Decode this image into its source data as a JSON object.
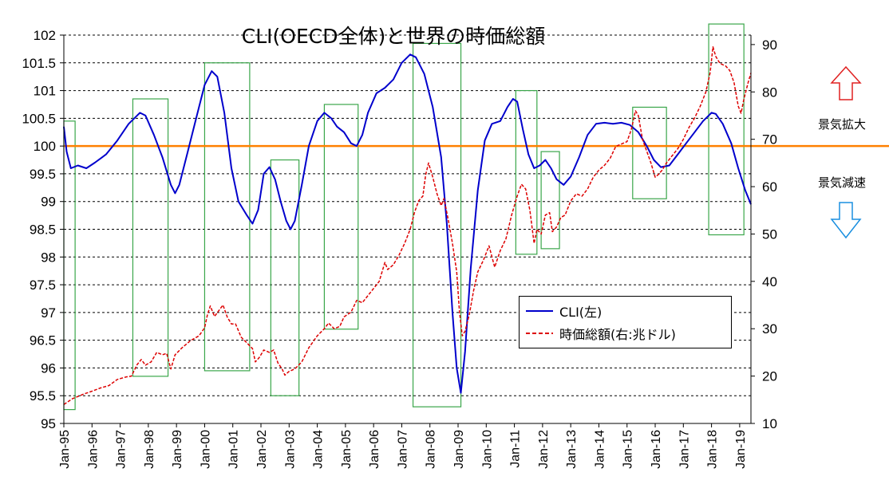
{
  "chart_data": {
    "type": "line",
    "title": "CLI(OECD全体)と世界の時価総額",
    "y_left": {
      "ylim": [
        95,
        102
      ],
      "ticks": [
        "95",
        "95.5",
        "96",
        "96.5",
        "97",
        "97.5",
        "98",
        "98.5",
        "99",
        "99.5",
        "100",
        "100.5",
        "101",
        "101.5",
        "102"
      ]
    },
    "y_right": {
      "ylim": [
        10,
        92
      ],
      "ticks": [
        "10",
        "20",
        "30",
        "40",
        "50",
        "60",
        "70",
        "80",
        "90"
      ]
    },
    "x_ticks": [
      "Jan-95",
      "Jan-96",
      "Jan-97",
      "Jan-98",
      "Jan-99",
      "Jan-00",
      "Jan-01",
      "Jan-02",
      "Jan-03",
      "Jan-04",
      "Jan-05",
      "Jan-06",
      "Jan-07",
      "Jan-08",
      "Jan-09",
      "Jan-10",
      "Jan-11",
      "Jan-12",
      "Jan-13",
      "Jan-14",
      "Jan-15",
      "Jan-16",
      "Jan-17",
      "Jan-18",
      "Jan-19"
    ],
    "xlim": [
      1995.0,
      2019.4
    ],
    "grid": "horizontal dashed",
    "series": [
      {
        "name": "CLI(左)",
        "axis": "left",
        "color": "#0000cc",
        "style": "solid",
        "points": [
          [
            1995.0,
            100.35
          ],
          [
            1995.1,
            99.9
          ],
          [
            1995.25,
            99.6
          ],
          [
            1995.5,
            99.65
          ],
          [
            1995.8,
            99.6
          ],
          [
            1996.1,
            99.7
          ],
          [
            1996.5,
            99.85
          ],
          [
            1996.9,
            100.1
          ],
          [
            1997.3,
            100.4
          ],
          [
            1997.7,
            100.6
          ],
          [
            1997.9,
            100.55
          ],
          [
            1998.2,
            100.2
          ],
          [
            1998.5,
            99.8
          ],
          [
            1998.8,
            99.3
          ],
          [
            1998.95,
            99.15
          ],
          [
            1999.1,
            99.3
          ],
          [
            1999.4,
            99.9
          ],
          [
            1999.7,
            100.5
          ],
          [
            2000.0,
            101.1
          ],
          [
            2000.25,
            101.35
          ],
          [
            2000.45,
            101.25
          ],
          [
            2000.7,
            100.6
          ],
          [
            2000.95,
            99.6
          ],
          [
            2001.2,
            99.0
          ],
          [
            2001.5,
            98.75
          ],
          [
            2001.7,
            98.6
          ],
          [
            2001.9,
            98.85
          ],
          [
            2002.1,
            99.5
          ],
          [
            2002.3,
            99.62
          ],
          [
            2002.5,
            99.4
          ],
          [
            2002.7,
            99.0
          ],
          [
            2002.9,
            98.65
          ],
          [
            2003.05,
            98.5
          ],
          [
            2003.2,
            98.65
          ],
          [
            2003.45,
            99.3
          ],
          [
            2003.7,
            100.0
          ],
          [
            2004.0,
            100.45
          ],
          [
            2004.25,
            100.6
          ],
          [
            2004.5,
            100.5
          ],
          [
            2004.7,
            100.35
          ],
          [
            2004.95,
            100.25
          ],
          [
            2005.2,
            100.05
          ],
          [
            2005.4,
            100.0
          ],
          [
            2005.6,
            100.2
          ],
          [
            2005.8,
            100.6
          ],
          [
            2006.1,
            100.95
          ],
          [
            2006.4,
            101.05
          ],
          [
            2006.7,
            101.2
          ],
          [
            2007.0,
            101.5
          ],
          [
            2007.3,
            101.65
          ],
          [
            2007.5,
            101.6
          ],
          [
            2007.8,
            101.3
          ],
          [
            2008.1,
            100.7
          ],
          [
            2008.4,
            99.8
          ],
          [
            2008.6,
            98.6
          ],
          [
            2008.8,
            97.0
          ],
          [
            2008.95,
            96.0
          ],
          [
            2009.1,
            95.55
          ],
          [
            2009.25,
            96.3
          ],
          [
            2009.45,
            97.8
          ],
          [
            2009.7,
            99.2
          ],
          [
            2009.95,
            100.1
          ],
          [
            2010.2,
            100.4
          ],
          [
            2010.5,
            100.45
          ],
          [
            2010.75,
            100.7
          ],
          [
            2010.95,
            100.85
          ],
          [
            2011.1,
            100.8
          ],
          [
            2011.3,
            100.3
          ],
          [
            2011.5,
            99.85
          ],
          [
            2011.7,
            99.6
          ],
          [
            2011.9,
            99.65
          ],
          [
            2012.1,
            99.75
          ],
          [
            2012.3,
            99.6
          ],
          [
            2012.5,
            99.4
          ],
          [
            2012.75,
            99.3
          ],
          [
            2013.0,
            99.45
          ],
          [
            2013.3,
            99.8
          ],
          [
            2013.6,
            100.2
          ],
          [
            2013.9,
            100.4
          ],
          [
            2014.2,
            100.42
          ],
          [
            2014.5,
            100.4
          ],
          [
            2014.8,
            100.42
          ],
          [
            2015.1,
            100.38
          ],
          [
            2015.4,
            100.25
          ],
          [
            2015.7,
            100.0
          ],
          [
            2015.95,
            99.75
          ],
          [
            2016.2,
            99.62
          ],
          [
            2016.5,
            99.65
          ],
          [
            2016.8,
            99.85
          ],
          [
            2017.1,
            100.05
          ],
          [
            2017.4,
            100.25
          ],
          [
            2017.7,
            100.45
          ],
          [
            2018.0,
            100.6
          ],
          [
            2018.15,
            100.58
          ],
          [
            2018.4,
            100.4
          ],
          [
            2018.7,
            100.05
          ],
          [
            2018.95,
            99.6
          ],
          [
            2019.2,
            99.2
          ],
          [
            2019.4,
            98.95
          ]
        ]
      },
      {
        "name": "時価総額(右:兆ドル)",
        "axis": "right",
        "color": "#dd0000",
        "style": "dashed",
        "points": [
          [
            1995.0,
            14.0
          ],
          [
            1995.3,
            15.2
          ],
          [
            1995.7,
            16.2
          ],
          [
            1996.0,
            16.8
          ],
          [
            1996.3,
            17.5
          ],
          [
            1996.6,
            18.0
          ],
          [
            1996.9,
            19.3
          ],
          [
            1997.2,
            19.8
          ],
          [
            1997.4,
            20.0
          ],
          [
            1997.6,
            22.4
          ],
          [
            1997.75,
            23.5
          ],
          [
            1997.9,
            22.3
          ],
          [
            1998.1,
            23.0
          ],
          [
            1998.3,
            25.0
          ],
          [
            1998.5,
            24.5
          ],
          [
            1998.65,
            24.8
          ],
          [
            1998.8,
            21.5
          ],
          [
            1998.95,
            24.5
          ],
          [
            1999.2,
            26.0
          ],
          [
            1999.5,
            27.5
          ],
          [
            1999.8,
            28.5
          ],
          [
            2000.0,
            30.2
          ],
          [
            2000.1,
            33.0
          ],
          [
            2000.2,
            34.8
          ],
          [
            2000.35,
            32.6
          ],
          [
            2000.5,
            33.8
          ],
          [
            2000.65,
            35.0
          ],
          [
            2000.8,
            32.5
          ],
          [
            2000.95,
            31.0
          ],
          [
            2001.1,
            31.0
          ],
          [
            2001.3,
            28.2
          ],
          [
            2001.5,
            27.0
          ],
          [
            2001.7,
            25.8
          ],
          [
            2001.8,
            23.0
          ],
          [
            2001.95,
            24.0
          ],
          [
            2002.1,
            25.5
          ],
          [
            2002.3,
            25.0
          ],
          [
            2002.45,
            25.5
          ],
          [
            2002.6,
            22.8
          ],
          [
            2002.75,
            21.5
          ],
          [
            2002.85,
            20.2
          ],
          [
            2003.0,
            21.0
          ],
          [
            2003.2,
            21.5
          ],
          [
            2003.45,
            23.0
          ],
          [
            2003.7,
            26.0
          ],
          [
            2004.0,
            28.5
          ],
          [
            2004.25,
            30.0
          ],
          [
            2004.4,
            31.2
          ],
          [
            2004.6,
            30.0
          ],
          [
            2004.8,
            30.5
          ],
          [
            2004.95,
            32.5
          ],
          [
            2005.2,
            33.5
          ],
          [
            2005.4,
            36.0
          ],
          [
            2005.6,
            35.5
          ],
          [
            2005.8,
            37.0
          ],
          [
            2006.0,
            38.5
          ],
          [
            2006.2,
            40.0
          ],
          [
            2006.4,
            44.0
          ],
          [
            2006.5,
            42.5
          ],
          [
            2006.7,
            43.5
          ],
          [
            2006.9,
            45.5
          ],
          [
            2007.1,
            48.0
          ],
          [
            2007.3,
            51.0
          ],
          [
            2007.45,
            54.5
          ],
          [
            2007.6,
            57.0
          ],
          [
            2007.75,
            58.0
          ],
          [
            2007.85,
            62.5
          ],
          [
            2007.95,
            65.0
          ],
          [
            2008.1,
            62.0
          ],
          [
            2008.25,
            58.5
          ],
          [
            2008.4,
            56.0
          ],
          [
            2008.5,
            57.5
          ],
          [
            2008.65,
            53.0
          ],
          [
            2008.8,
            48.0
          ],
          [
            2008.95,
            42.0
          ],
          [
            2009.05,
            33.5
          ],
          [
            2009.15,
            28.5
          ],
          [
            2009.25,
            29.5
          ],
          [
            2009.4,
            33.0
          ],
          [
            2009.55,
            38.0
          ],
          [
            2009.7,
            42.0
          ],
          [
            2009.9,
            44.5
          ],
          [
            2010.1,
            47.5
          ],
          [
            2010.3,
            43.0
          ],
          [
            2010.5,
            46.5
          ],
          [
            2010.7,
            49.0
          ],
          [
            2010.9,
            54.0
          ],
          [
            2011.1,
            58.0
          ],
          [
            2011.25,
            60.5
          ],
          [
            2011.4,
            59.5
          ],
          [
            2011.55,
            55.0
          ],
          [
            2011.7,
            48.0
          ],
          [
            2011.8,
            51.0
          ],
          [
            2011.95,
            50.0
          ],
          [
            2012.1,
            54.0
          ],
          [
            2012.25,
            54.5
          ],
          [
            2012.35,
            50.5
          ],
          [
            2012.5,
            51.5
          ],
          [
            2012.65,
            53.5
          ],
          [
            2012.8,
            54.0
          ],
          [
            2013.0,
            57.0
          ],
          [
            2013.2,
            58.5
          ],
          [
            2013.4,
            58.0
          ],
          [
            2013.6,
            59.5
          ],
          [
            2013.8,
            62.0
          ],
          [
            2014.0,
            63.5
          ],
          [
            2014.2,
            64.5
          ],
          [
            2014.4,
            66.0
          ],
          [
            2014.6,
            68.5
          ],
          [
            2014.8,
            69.0
          ],
          [
            2015.0,
            69.5
          ],
          [
            2015.15,
            72.0
          ],
          [
            2015.3,
            76.0
          ],
          [
            2015.4,
            75.0
          ],
          [
            2015.55,
            70.0
          ],
          [
            2015.7,
            67.5
          ],
          [
            2015.85,
            65.0
          ],
          [
            2016.0,
            62.0
          ],
          [
            2016.1,
            62.5
          ],
          [
            2016.25,
            63.5
          ],
          [
            2016.4,
            65.0
          ],
          [
            2016.6,
            66.5
          ],
          [
            2016.8,
            68.0
          ],
          [
            2017.0,
            70.0
          ],
          [
            2017.2,
            72.5
          ],
          [
            2017.4,
            74.5
          ],
          [
            2017.6,
            77.0
          ],
          [
            2017.8,
            80.0
          ],
          [
            2017.95,
            84.0
          ],
          [
            2018.05,
            89.5
          ],
          [
            2018.15,
            87.5
          ],
          [
            2018.3,
            86.0
          ],
          [
            2018.5,
            85.5
          ],
          [
            2018.65,
            84.5
          ],
          [
            2018.8,
            82.0
          ],
          [
            2018.95,
            77.0
          ],
          [
            2019.05,
            75.5
          ],
          [
            2019.15,
            78.5
          ],
          [
            2019.3,
            82.0
          ],
          [
            2019.4,
            84.0
          ]
        ]
      }
    ],
    "reference_line": {
      "value": 100,
      "axis": "left",
      "color": "#ff8000"
    },
    "highlight_boxes": [
      {
        "x0": 1995.0,
        "x1": 1995.4,
        "y0": 95.25,
        "y1": 100.45
      },
      {
        "x0": 1997.45,
        "x1": 1998.7,
        "y0": 95.85,
        "y1": 100.85
      },
      {
        "x0": 2000.0,
        "x1": 2001.6,
        "y0": 95.95,
        "y1": 101.5
      },
      {
        "x0": 2002.35,
        "x1": 2003.35,
        "y0": 95.5,
        "y1": 99.75
      },
      {
        "x0": 2004.25,
        "x1": 2005.45,
        "y0": 96.7,
        "y1": 100.75
      },
      {
        "x0": 2007.4,
        "x1": 2009.1,
        "y0": 95.3,
        "y1": 101.85
      },
      {
        "x0": 2011.05,
        "x1": 2011.8,
        "y0": 98.05,
        "y1": 101.0
      },
      {
        "x0": 2011.95,
        "x1": 2012.6,
        "y0": 98.15,
        "y1": 99.9
      },
      {
        "x0": 2015.2,
        "x1": 2016.4,
        "y0": 99.05,
        "y1": 100.7
      },
      {
        "x0": 2017.9,
        "x1": 2019.15,
        "y0": 98.4,
        "y1": 102.2
      }
    ],
    "legend": {
      "position": "bottom-right",
      "entries": [
        {
          "label": "CLI(左)",
          "color": "#0000cc"
        },
        {
          "label": "時価総額(右:兆ドル)",
          "color": "#dd0000"
        }
      ]
    }
  },
  "annotations": {
    "expansion_label": "景気拡大",
    "slowdown_label": "景気減速",
    "up_arrow_icon": "up-arrow-icon",
    "down_arrow_icon": "down-arrow-icon",
    "up_arrow_color": "#e02020",
    "down_arrow_color": "#1a8fe0"
  }
}
